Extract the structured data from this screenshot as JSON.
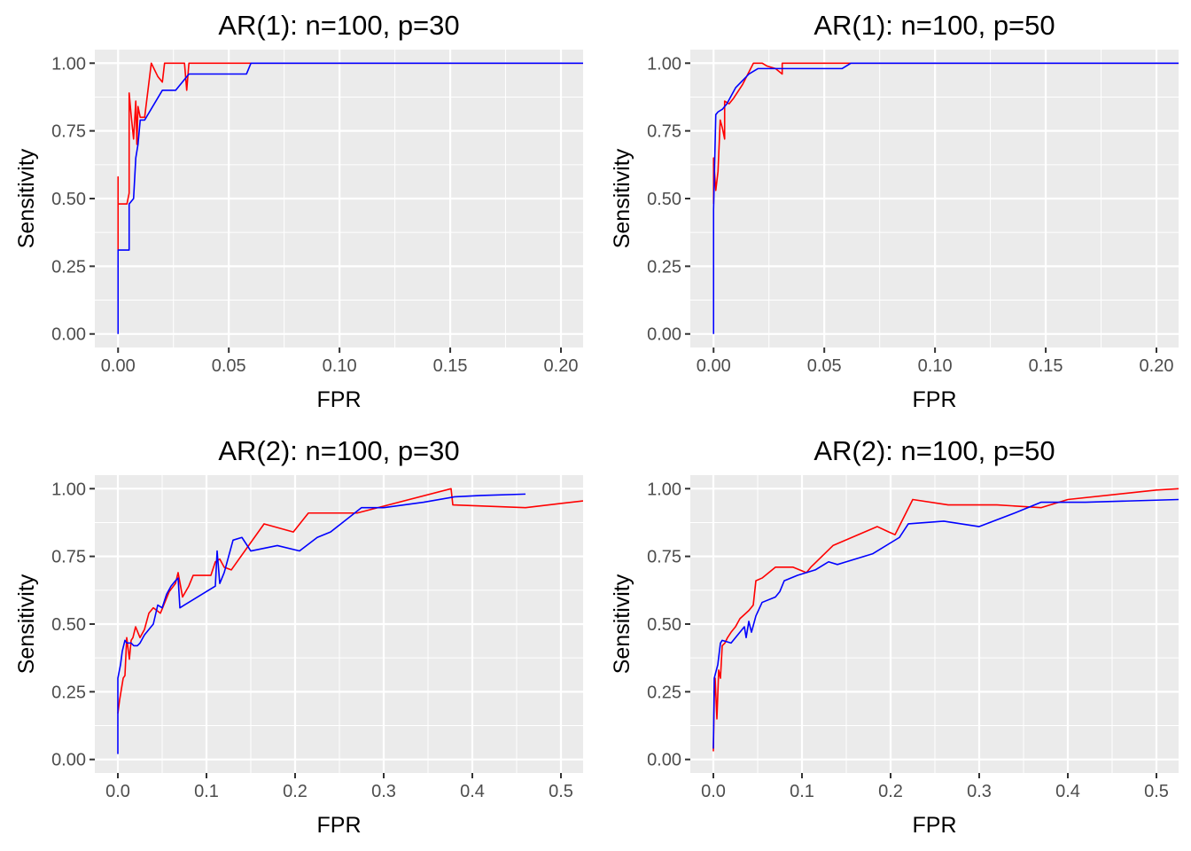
{
  "chart_data": [
    {
      "type": "line",
      "title": "AR(1): n=100, p=30",
      "xlabel": "FPR",
      "ylabel": "Sensitivity",
      "xlim": [
        -0.0105,
        0.21
      ],
      "ylim": [
        -0.05,
        1.05
      ],
      "xticks": [
        0,
        0.05,
        0.1,
        0.15,
        0.2
      ],
      "xtick_labels": [
        "0.00",
        "0.05",
        "0.10",
        "0.15",
        "0.20"
      ],
      "yticks": [
        0,
        0.25,
        0.5,
        0.75,
        1
      ],
      "ytick_labels": [
        "0.00",
        "0.25",
        "0.50",
        "0.75",
        "1.00"
      ],
      "grid": true,
      "series": [
        {
          "color": "#ff0000",
          "points": [
            [
              0,
              0.31
            ],
            [
              0,
              0.58
            ],
            [
              0,
              0.48
            ],
            [
              0.004,
              0.48
            ],
            [
              0.005,
              0.52
            ],
            [
              0.005,
              0.89
            ],
            [
              0.006,
              0.8
            ],
            [
              0.007,
              0.72
            ],
            [
              0.008,
              0.86
            ],
            [
              0.0085,
              0.7
            ],
            [
              0.009,
              0.84
            ],
            [
              0.01,
              0.8
            ],
            [
              0.012,
              0.8
            ],
            [
              0.015,
              1.0
            ],
            [
              0.018,
              0.95
            ],
            [
              0.02,
              0.93
            ],
            [
              0.021,
              1.0
            ],
            [
              0.024,
              1.0
            ],
            [
              0.03,
              1.0
            ],
            [
              0.031,
              0.9
            ],
            [
              0.032,
              1.0
            ],
            [
              0.21,
              1.0
            ]
          ]
        },
        {
          "color": "#0000ff",
          "points": [
            [
              0,
              0
            ],
            [
              0,
              0.31
            ],
            [
              0.005,
              0.31
            ],
            [
              0.005,
              0.48
            ],
            [
              0.007,
              0.5
            ],
            [
              0.008,
              0.65
            ],
            [
              0.009,
              0.7
            ],
            [
              0.01,
              0.79
            ],
            [
              0.012,
              0.79
            ],
            [
              0.02,
              0.9
            ],
            [
              0.026,
              0.9
            ],
            [
              0.032,
              0.96
            ],
            [
              0.058,
              0.96
            ],
            [
              0.06,
              1.0
            ],
            [
              0.21,
              1.0
            ]
          ]
        }
      ]
    },
    {
      "type": "line",
      "title": "AR(1): n=100, p=50",
      "xlabel": "FPR",
      "ylabel": "Sensitivity",
      "xlim": [
        -0.0105,
        0.21
      ],
      "ylim": [
        -0.05,
        1.05
      ],
      "xticks": [
        0,
        0.05,
        0.1,
        0.15,
        0.2
      ],
      "xtick_labels": [
        "0.00",
        "0.05",
        "0.10",
        "0.15",
        "0.20"
      ],
      "yticks": [
        0,
        0.25,
        0.5,
        0.75,
        1
      ],
      "ytick_labels": [
        "0.00",
        "0.25",
        "0.50",
        "0.75",
        "1.00"
      ],
      "grid": true,
      "series": [
        {
          "color": "#ff0000",
          "points": [
            [
              0,
              0.48
            ],
            [
              0,
              0.65
            ],
            [
              0.001,
              0.53
            ],
            [
              0.002,
              0.6
            ],
            [
              0.003,
              0.79
            ],
            [
              0.004,
              0.76
            ],
            [
              0.005,
              0.72
            ],
            [
              0.005,
              0.86
            ],
            [
              0.007,
              0.85
            ],
            [
              0.009,
              0.87
            ],
            [
              0.013,
              0.92
            ],
            [
              0.018,
              1.0
            ],
            [
              0.022,
              1.0
            ],
            [
              0.024,
              0.99
            ],
            [
              0.028,
              0.98
            ],
            [
              0.031,
              0.96
            ],
            [
              0.031,
              1.0
            ],
            [
              0.21,
              1.0
            ]
          ]
        },
        {
          "color": "#0000ff",
          "points": [
            [
              0,
              0
            ],
            [
              0,
              0.46
            ],
            [
              0.001,
              0.81
            ],
            [
              0.002,
              0.82
            ],
            [
              0.004,
              0.83
            ],
            [
              0.006,
              0.85
            ],
            [
              0.01,
              0.91
            ],
            [
              0.016,
              0.96
            ],
            [
              0.02,
              0.98
            ],
            [
              0.058,
              0.98
            ],
            [
              0.062,
              1.0
            ],
            [
              0.21,
              1.0
            ]
          ]
        }
      ]
    },
    {
      "type": "line",
      "title": "AR(2): n=100, p=30",
      "xlabel": "FPR",
      "ylabel": "Sensitivity",
      "xlim": [
        -0.026,
        0.525
      ],
      "ylim": [
        -0.05,
        1.05
      ],
      "xticks": [
        0,
        0.1,
        0.2,
        0.3,
        0.4,
        0.5
      ],
      "xtick_labels": [
        "0.0",
        "0.1",
        "0.2",
        "0.3",
        "0.4",
        "0.5"
      ],
      "yticks": [
        0,
        0.25,
        0.5,
        0.75,
        1
      ],
      "ytick_labels": [
        "0.00",
        "0.25",
        "0.50",
        "0.75",
        "1.00"
      ],
      "grid": true,
      "series": [
        {
          "color": "#ff0000",
          "points": [
            [
              0,
              0.17
            ],
            [
              0.002,
              0.22
            ],
            [
              0.004,
              0.26
            ],
            [
              0.006,
              0.3
            ],
            [
              0.008,
              0.31
            ],
            [
              0.01,
              0.45
            ],
            [
              0.013,
              0.37
            ],
            [
              0.015,
              0.44
            ],
            [
              0.017,
              0.45
            ],
            [
              0.02,
              0.49
            ],
            [
              0.025,
              0.45
            ],
            [
              0.03,
              0.48
            ],
            [
              0.035,
              0.54
            ],
            [
              0.04,
              0.56
            ],
            [
              0.048,
              0.54
            ],
            [
              0.058,
              0.62
            ],
            [
              0.065,
              0.65
            ],
            [
              0.068,
              0.69
            ],
            [
              0.073,
              0.6
            ],
            [
              0.08,
              0.64
            ],
            [
              0.085,
              0.68
            ],
            [
              0.1,
              0.68
            ],
            [
              0.105,
              0.68
            ],
            [
              0.11,
              0.73
            ],
            [
              0.115,
              0.74
            ],
            [
              0.12,
              0.71
            ],
            [
              0.128,
              0.7
            ],
            [
              0.165,
              0.87
            ],
            [
              0.198,
              0.84
            ],
            [
              0.215,
              0.91
            ],
            [
              0.27,
              0.91
            ],
            [
              0.376,
              1.0
            ],
            [
              0.378,
              0.94
            ],
            [
              0.46,
              0.93
            ],
            [
              0.525,
              0.955
            ]
          ]
        },
        {
          "color": "#0000ff",
          "points": [
            [
              0,
              0.02
            ],
            [
              0,
              0.3
            ],
            [
              0.003,
              0.35
            ],
            [
              0.005,
              0.4
            ],
            [
              0.008,
              0.44
            ],
            [
              0.01,
              0.43
            ],
            [
              0.015,
              0.43
            ],
            [
              0.018,
              0.42
            ],
            [
              0.022,
              0.42
            ],
            [
              0.025,
              0.43
            ],
            [
              0.03,
              0.46
            ],
            [
              0.035,
              0.48
            ],
            [
              0.04,
              0.5
            ],
            [
              0.045,
              0.57
            ],
            [
              0.05,
              0.56
            ],
            [
              0.055,
              0.61
            ],
            [
              0.06,
              0.64
            ],
            [
              0.065,
              0.66
            ],
            [
              0.068,
              0.67
            ],
            [
              0.07,
              0.56
            ],
            [
              0.075,
              0.57
            ],
            [
              0.11,
              0.64
            ],
            [
              0.112,
              0.77
            ],
            [
              0.115,
              0.65
            ],
            [
              0.12,
              0.69
            ],
            [
              0.13,
              0.81
            ],
            [
              0.14,
              0.82
            ],
            [
              0.15,
              0.77
            ],
            [
              0.18,
              0.79
            ],
            [
              0.205,
              0.77
            ],
            [
              0.225,
              0.82
            ],
            [
              0.24,
              0.84
            ],
            [
              0.275,
              0.93
            ],
            [
              0.3,
              0.93
            ],
            [
              0.345,
              0.95
            ],
            [
              0.38,
              0.97
            ],
            [
              0.41,
              0.975
            ],
            [
              0.46,
              0.98
            ]
          ]
        }
      ]
    },
    {
      "type": "line",
      "title": "AR(2): n=100, p=50",
      "xlabel": "FPR",
      "ylabel": "Sensitivity",
      "xlim": [
        -0.026,
        0.525
      ],
      "ylim": [
        -0.05,
        1.05
      ],
      "xticks": [
        0,
        0.1,
        0.2,
        0.3,
        0.4,
        0.5
      ],
      "xtick_labels": [
        "0.0",
        "0.1",
        "0.2",
        "0.3",
        "0.4",
        "0.5"
      ],
      "yticks": [
        0,
        0.25,
        0.5,
        0.75,
        1
      ],
      "ytick_labels": [
        "0.00",
        "0.25",
        "0.50",
        "0.75",
        "1.00"
      ],
      "grid": true,
      "series": [
        {
          "color": "#ff0000",
          "points": [
            [
              0,
              0.03
            ],
            [
              0.001,
              0.23
            ],
            [
              0.002,
              0.3
            ],
            [
              0.004,
              0.15
            ],
            [
              0.006,
              0.33
            ],
            [
              0.008,
              0.3
            ],
            [
              0.01,
              0.42
            ],
            [
              0.013,
              0.43
            ],
            [
              0.016,
              0.45
            ],
            [
              0.02,
              0.47
            ],
            [
              0.025,
              0.49
            ],
            [
              0.03,
              0.52
            ],
            [
              0.04,
              0.55
            ],
            [
              0.045,
              0.57
            ],
            [
              0.048,
              0.66
            ],
            [
              0.055,
              0.67
            ],
            [
              0.07,
              0.71
            ],
            [
              0.09,
              0.71
            ],
            [
              0.105,
              0.69
            ],
            [
              0.11,
              0.71
            ],
            [
              0.135,
              0.79
            ],
            [
              0.185,
              0.86
            ],
            [
              0.198,
              0.84
            ],
            [
              0.205,
              0.83
            ],
            [
              0.225,
              0.96
            ],
            [
              0.265,
              0.94
            ],
            [
              0.32,
              0.94
            ],
            [
              0.37,
              0.93
            ],
            [
              0.4,
              0.96
            ],
            [
              0.5,
              0.995
            ],
            [
              0.525,
              1.0
            ]
          ]
        },
        {
          "color": "#0000ff",
          "points": [
            [
              0,
              0.04
            ],
            [
              0.001,
              0.3
            ],
            [
              0.005,
              0.35
            ],
            [
              0.008,
              0.43
            ],
            [
              0.01,
              0.44
            ],
            [
              0.02,
              0.43
            ],
            [
              0.03,
              0.47
            ],
            [
              0.035,
              0.49
            ],
            [
              0.037,
              0.45
            ],
            [
              0.04,
              0.51
            ],
            [
              0.043,
              0.47
            ],
            [
              0.048,
              0.53
            ],
            [
              0.055,
              0.58
            ],
            [
              0.07,
              0.6
            ],
            [
              0.075,
              0.62
            ],
            [
              0.08,
              0.66
            ],
            [
              0.095,
              0.68
            ],
            [
              0.115,
              0.7
            ],
            [
              0.13,
              0.73
            ],
            [
              0.14,
              0.72
            ],
            [
              0.18,
              0.76
            ],
            [
              0.21,
              0.82
            ],
            [
              0.22,
              0.87
            ],
            [
              0.26,
              0.88
            ],
            [
              0.3,
              0.86
            ],
            [
              0.34,
              0.91
            ],
            [
              0.37,
              0.95
            ],
            [
              0.42,
              0.95
            ],
            [
              0.525,
              0.96
            ]
          ]
        }
      ]
    }
  ]
}
